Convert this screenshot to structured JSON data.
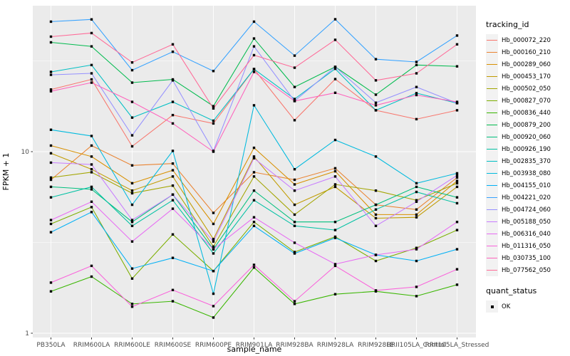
{
  "chart_data": {
    "type": "line",
    "title": "",
    "xlabel": "sample_name",
    "ylabel": "FPKM + 1",
    "panel_bg": "#EBEBEB",
    "grid_color": "#FFFFFF",
    "point_color": "#000000",
    "legend_position": "right",
    "legend_titles": {
      "series": "tracking_id",
      "shape": "quant_status"
    },
    "shape_legend": [
      {
        "label": "OK",
        "shape": "filled-square"
      }
    ],
    "y_axis": {
      "scale": "log10",
      "major_ticks": [
        1,
        10
      ],
      "minor_ticks": [
        3.1623,
        31.623
      ],
      "range": [
        1,
        64
      ]
    },
    "categories": [
      "PB350LA",
      "RRIM600LA",
      "RRIM600LE",
      "RRIM600SE",
      "RRIM600PE",
      "RRIM901LA",
      "RRIM928BA",
      "RRIM928LA",
      "RRIM928LE",
      "RRII105LA_Control",
      "RRII105LA_Stressed"
    ],
    "series": [
      {
        "name": "Hb_000072_220",
        "color": "#F8766D",
        "values": [
          22,
          25,
          10.7,
          15.9,
          14.3,
          28.5,
          14.9,
          25.1,
          16.9,
          15.1,
          16.9
        ]
      },
      {
        "name": "Hb_000160_210",
        "color": "#EA8331",
        "values": [
          7.0,
          10.8,
          8.4,
          8.6,
          4.6,
          7.7,
          7.0,
          8.1,
          5.1,
          4.8,
          7.2
        ]
      },
      {
        "name": "Hb_000289_060",
        "color": "#D89000",
        "values": [
          10.8,
          9.4,
          6.7,
          7.9,
          4.0,
          10.5,
          6.6,
          7.8,
          4.5,
          4.5,
          6.9
        ]
      },
      {
        "name": "Hb_000453_170",
        "color": "#C09B00",
        "values": [
          9.8,
          8.0,
          6.1,
          7.3,
          3.3,
          9.4,
          5.1,
          6.4,
          4.3,
          4.35,
          6.4
        ]
      },
      {
        "name": "Hb_000502_050",
        "color": "#A3A500",
        "values": [
          7.2,
          7.7,
          5.9,
          6.5,
          3.0,
          7.3,
          4.5,
          6.6,
          6.1,
          5.4,
          6.7
        ]
      },
      {
        "name": "Hb_000827_070",
        "color": "#7CAE00",
        "values": [
          4.0,
          4.95,
          2.0,
          3.5,
          2.2,
          4.1,
          2.8,
          3.4,
          2.5,
          2.95,
          3.7
        ]
      },
      {
        "name": "Hb_000836_440",
        "color": "#39B600",
        "values": [
          1.7,
          2.05,
          1.45,
          1.5,
          1.22,
          2.3,
          1.45,
          1.64,
          1.7,
          1.6,
          1.85
        ]
      },
      {
        "name": "Hb_000879_200",
        "color": "#00BB4E",
        "values": [
          40,
          38,
          24,
          25,
          17.8,
          42,
          22.7,
          29.3,
          20.6,
          30,
          29.5
        ]
      },
      {
        "name": "Hb_000920_060",
        "color": "#00BF7D",
        "values": [
          6.4,
          6.2,
          4.1,
          5.8,
          2.9,
          6.1,
          4.1,
          4.1,
          5.1,
          6.4,
          5.6
        ]
      },
      {
        "name": "Hb_000926_190",
        "color": "#00C1A3",
        "values": [
          5.6,
          6.4,
          3.9,
          5.4,
          2.75,
          5.4,
          3.9,
          3.7,
          4.8,
          6.0,
          5.2
        ]
      },
      {
        "name": "Hb_002835_370",
        "color": "#00BFC4",
        "values": [
          27.5,
          30,
          15.4,
          18.8,
          14.8,
          28.5,
          19.5,
          28.6,
          16.9,
          21,
          18.5
        ]
      },
      {
        "name": "Hb_003938_080",
        "color": "#00BADE",
        "values": [
          13.2,
          12.2,
          5.1,
          10.1,
          1.65,
          18,
          8.0,
          11.6,
          9.4,
          6.7,
          7.6
        ]
      },
      {
        "name": "Hb_004155_010",
        "color": "#00B0F6",
        "values": [
          3.6,
          4.65,
          2.27,
          2.6,
          2.2,
          3.9,
          2.75,
          3.35,
          2.7,
          2.5,
          2.9
        ]
      },
      {
        "name": "Hb_004221_020",
        "color": "#35A2FF",
        "values": [
          52,
          53.5,
          28.1,
          35.5,
          27.8,
          52,
          33.8,
          53.6,
          32.3,
          31.2,
          43.6
        ]
      },
      {
        "name": "Hb_004724_060",
        "color": "#9590FF",
        "values": [
          26.5,
          27,
          12.3,
          24.7,
          10.1,
          38,
          19,
          29.3,
          18.6,
          22.7,
          18.5
        ]
      },
      {
        "name": "Hb_005188_050",
        "color": "#C77CFF",
        "values": [
          8.7,
          8.5,
          4.2,
          5.8,
          3.2,
          9.2,
          6.1,
          7.3,
          3.9,
          5.3,
          7.4
        ]
      },
      {
        "name": "Hb_006316_040",
        "color": "#E76BF3",
        "values": [
          4.2,
          5.3,
          3.2,
          4.85,
          2.9,
          4.35,
          3.15,
          2.4,
          2.7,
          2.9,
          4.1
        ]
      },
      {
        "name": "Hb_011316_050",
        "color": "#FA62DB",
        "values": [
          1.9,
          2.35,
          1.4,
          1.73,
          1.41,
          2.38,
          1.5,
          2.35,
          1.72,
          1.8,
          2.25
        ]
      },
      {
        "name": "Hb_030735_100",
        "color": "#FF62BC",
        "values": [
          21.5,
          24,
          18.8,
          14.3,
          10,
          27.5,
          19,
          21.1,
          18,
          20.5,
          18.8
        ]
      },
      {
        "name": "Hb_077562_050",
        "color": "#FF6A98",
        "values": [
          43,
          45,
          31,
          39,
          17.3,
          34,
          29,
          41.3,
          24.7,
          27,
          39
        ]
      }
    ]
  }
}
